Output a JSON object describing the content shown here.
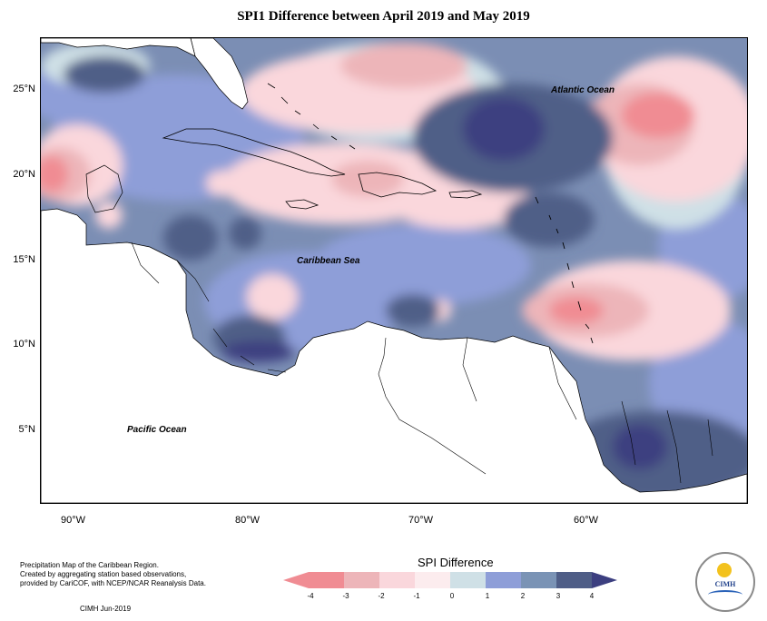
{
  "title": "SPI1 Difference between April 2019 and May 2019",
  "lat_ticks": [
    "25°N",
    "20°N",
    "15°N",
    "10°N",
    "5°N"
  ],
  "lon_ticks": [
    "90°W",
    "80°W",
    "70°W",
    "60°W"
  ],
  "labels": {
    "atlantic": "Atlantic Ocean",
    "caribbean": "Caribbean Sea",
    "pacific": "Pacific Ocean"
  },
  "credit": {
    "line1": "Precipitation Map of the Caribbean Region.",
    "line2": "Created by aggregating station based observations,",
    "line3": "provided by CariCOF, with NCEP/NCAR Reanalysis Data.",
    "line4": "CIMH Jun-2019"
  },
  "legend": {
    "title": "SPI Difference",
    "ticks": [
      "-4",
      "-3",
      "-2",
      "-1",
      "0",
      "1",
      "2",
      "3",
      "4"
    ],
    "colors": [
      "#f08c93",
      "#edb5b9",
      "#fad7dc",
      "#fcecee",
      "#cfe0e6",
      "#8e9ed8",
      "#7a93b5",
      "#4f5e87",
      "#3c3f80"
    ]
  },
  "logo": {
    "name": "CIMH"
  }
}
